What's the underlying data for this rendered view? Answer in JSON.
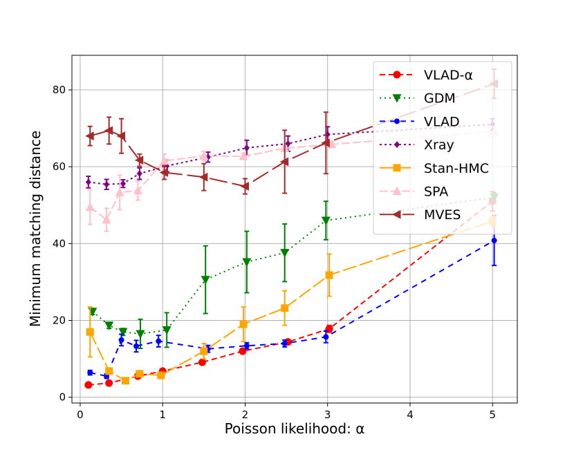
{
  "chart_data": {
    "type": "line",
    "xlabel": "Poisson likelihood: α",
    "ylabel": "Minimum matching distance",
    "xlim": [
      -0.1,
      5.3
    ],
    "ylim": [
      -1.5,
      89
    ],
    "xticks": [
      0,
      1,
      2,
      3,
      4,
      5
    ],
    "yticks": [
      0,
      20,
      40,
      60,
      80
    ],
    "grid": true,
    "legend_position": "top-right",
    "series": [
      {
        "name": "VLAD-α",
        "color": "#ff0000",
        "dash": "8,5",
        "marker": "circle",
        "x": [
          0.1,
          0.35,
          0.7,
          1.0,
          1.48,
          1.97,
          2.52,
          3.02,
          5.0
        ],
        "y": [
          3.2,
          3.7,
          5.5,
          6.8,
          9.1,
          12.0,
          14.4,
          17.8,
          51.0
        ],
        "err": [
          0.3,
          0.3,
          0.5,
          0.5,
          0.4,
          0.5,
          0.6,
          0.9,
          2.5
        ]
      },
      {
        "name": "GDM",
        "color": "#008000",
        "dash": "2,5",
        "marker": "triangle-down",
        "x": [
          0.15,
          0.35,
          0.52,
          0.73,
          1.05,
          1.52,
          2.02,
          2.48,
          2.98,
          5.02
        ],
        "y": [
          22.3,
          18.7,
          17.0,
          16.5,
          17.5,
          30.6,
          35.2,
          37.6,
          46.0,
          52.0
        ],
        "err": [
          0.8,
          0.8,
          0.9,
          3.8,
          4.5,
          8.8,
          8.0,
          7.5,
          5.0,
          1.2
        ]
      },
      {
        "name": "VLAD",
        "color": "#0000ff",
        "dash": "8,7",
        "marker": "circle-small",
        "x": [
          0.12,
          0.32,
          0.5,
          0.68,
          0.95,
          1.55,
          2.02,
          2.48,
          2.98,
          5.02
        ],
        "y": [
          6.4,
          5.5,
          14.9,
          13.3,
          14.6,
          12.6,
          13.4,
          14.0,
          15.7,
          40.8
        ],
        "err": [
          0.6,
          0.6,
          1.5,
          1.5,
          1.5,
          0.9,
          0.8,
          0.9,
          1.5,
          6.5
        ]
      },
      {
        "name": "Xray",
        "color": "#800080",
        "dash": "3,4",
        "marker": "diamond",
        "x": [
          0.1,
          0.32,
          0.52,
          0.72,
          1.05,
          1.55,
          2.02,
          2.52,
          3.0,
          5.0
        ],
        "y": [
          56.0,
          55.4,
          55.6,
          58.2,
          60.2,
          62.5,
          64.9,
          66.0,
          68.4,
          71.0
        ],
        "err": [
          1.5,
          1.3,
          1.0,
          1.5,
          1.5,
          1.3,
          2.0,
          2.0,
          2.0,
          1.5
        ]
      },
      {
        "name": "Stan-HMC",
        "color": "#ffa500",
        "dash": "20,5",
        "marker": "square",
        "x": [
          0.12,
          0.35,
          0.55,
          0.72,
          0.98,
          1.5,
          1.98,
          2.48,
          3.02,
          5.0
        ],
        "y": [
          17.0,
          6.8,
          4.3,
          6.1,
          5.7,
          12.0,
          19.0,
          23.2,
          31.8,
          45.8
        ],
        "err": [
          6.5,
          0.5,
          0.3,
          0.5,
          0.7,
          2.0,
          4.5,
          4.5,
          5.5,
          1.3
        ]
      },
      {
        "name": "SPA",
        "color": "#ffc0cb",
        "dash": "12,4",
        "marker": "triangle-up",
        "x": [
          0.12,
          0.32,
          0.48,
          0.7,
          1.02,
          1.5,
          1.98,
          2.48,
          3.05,
          5.02
        ],
        "y": [
          49.5,
          46.2,
          53.3,
          53.8,
          61.5,
          62.8,
          62.7,
          64.8,
          65.8,
          69.2
        ],
        "err": [
          4.5,
          3.0,
          4.5,
          2.5,
          1.8,
          1.2,
          0.8,
          0.7,
          0.8,
          1.3
        ]
      },
      {
        "name": "MVES",
        "color": "#a52a2a",
        "dash": "26,7",
        "marker": "triangle-left",
        "x": [
          0.12,
          0.35,
          0.5,
          0.72,
          1.02,
          1.5,
          2.0,
          2.48,
          2.98,
          5.02
        ],
        "y": [
          68.0,
          69.4,
          68.0,
          61.7,
          58.5,
          57.3,
          54.9,
          61.3,
          66.2,
          81.6
        ],
        "err": [
          2.5,
          3.5,
          4.5,
          1.6,
          1.8,
          3.5,
          2.0,
          8.2,
          8.0,
          3.8
        ]
      }
    ]
  }
}
